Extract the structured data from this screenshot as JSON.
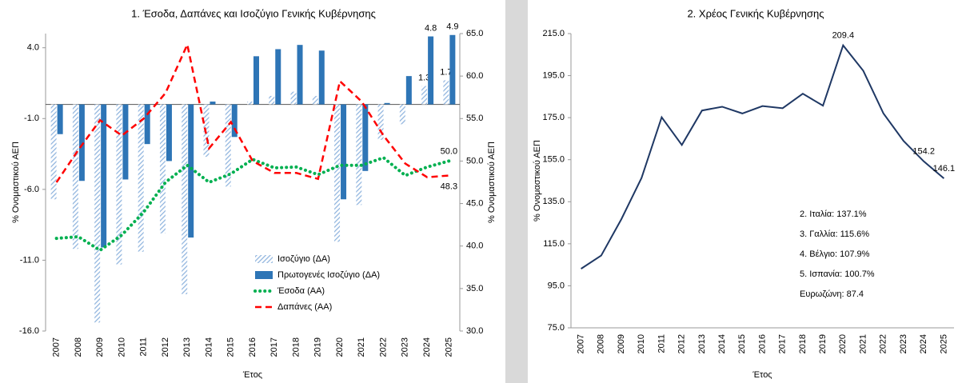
{
  "chart_data": [
    {
      "type": "bar_line",
      "title": "1. Έσοδα, Δαπάνες και Ισοζύγιο Γενικής Κυβέρνησης",
      "xlabel": "Έτος",
      "ylabel": "% Ονομαστικού ΑΕΠ",
      "y2label": "% Ονομαστικού ΑΕΠ",
      "categories": [
        "2007",
        "2008",
        "2009",
        "2010",
        "2011",
        "2012",
        "2013",
        "2014",
        "2015",
        "2016",
        "2017",
        "2018",
        "2019",
        "2020",
        "2021",
        "2022",
        "2023",
        "2024",
        "2025"
      ],
      "ylim": [
        -16,
        5
      ],
      "yticks": [
        {
          "value": 4,
          "label": "4.0"
        },
        {
          "value": -1,
          "label": "-1.0"
        },
        {
          "value": -6,
          "label": "-6.0"
        },
        {
          "value": -11,
          "label": "-11.0"
        },
        {
          "value": -16,
          "label": "-16.0"
        }
      ],
      "y2lim": [
        30,
        65
      ],
      "y2ticks": [
        {
          "value": 30,
          "label": "30.0"
        },
        {
          "value": 35,
          "label": "35.0"
        },
        {
          "value": 40,
          "label": "40.0"
        },
        {
          "value": 45,
          "label": "45.0"
        },
        {
          "value": 50,
          "label": "50.0"
        },
        {
          "value": 55,
          "label": "55.0"
        },
        {
          "value": 60,
          "label": "60.0"
        },
        {
          "value": 65,
          "label": "65.0"
        }
      ],
      "grid": false,
      "legend": "lower center",
      "series": [
        {
          "name": "Ισοζύγιο (ΔΑ)",
          "kind": "bar",
          "hatch": true,
          "color": "#8fb4de",
          "values": [
            -6.7,
            -10.2,
            -15.4,
            -11.3,
            -10.4,
            -9.1,
            -13.4,
            -3.7,
            -5.8,
            0.2,
            0.6,
            0.9,
            0.6,
            -9.7,
            -7.1,
            -2.5,
            -1.4,
            1.3,
            1.7
          ],
          "value_labels": [
            null,
            null,
            null,
            null,
            null,
            null,
            null,
            null,
            null,
            null,
            null,
            null,
            null,
            null,
            null,
            null,
            null,
            "1.3",
            "1.7"
          ]
        },
        {
          "name": "Πρωτογενές Ισοζύγιο (ΔΑ)",
          "kind": "bar",
          "hatch": false,
          "color": "#2e75b6",
          "values": [
            -2.1,
            -5.4,
            -10.1,
            -5.3,
            -2.8,
            -4.0,
            -9.4,
            0.2,
            -2.3,
            3.4,
            3.9,
            4.2,
            3.8,
            -6.7,
            -4.7,
            0.1,
            2.0,
            4.8,
            4.9
          ],
          "value_labels": [
            null,
            null,
            null,
            null,
            null,
            null,
            null,
            null,
            null,
            null,
            null,
            null,
            null,
            null,
            null,
            null,
            null,
            "4.8",
            "4.9"
          ]
        },
        {
          "name": "Έσοδα (ΑΑ)",
          "kind": "line",
          "axis": "y2",
          "style": "dotted",
          "color": "#00b050",
          "values": [
            40.9,
            41.1,
            39.5,
            41.3,
            44.0,
            47.5,
            49.5,
            47.5,
            48.5,
            50.2,
            49.2,
            49.3,
            48.4,
            49.5,
            49.5,
            50.4,
            48.3,
            49.3,
            50.0
          ],
          "value_labels": [
            null,
            null,
            null,
            null,
            null,
            null,
            null,
            null,
            null,
            null,
            null,
            null,
            null,
            null,
            null,
            null,
            null,
            null,
            "50.0"
          ]
        },
        {
          "name": "Δαπάνες (ΑΑ)",
          "kind": "line",
          "axis": "y2",
          "style": "dashed",
          "color": "#ff0000",
          "values": [
            47.5,
            51.3,
            54.8,
            53.0,
            55.0,
            58.0,
            63.7,
            51.5,
            54.6,
            50.0,
            48.6,
            48.6,
            47.9,
            59.4,
            57.0,
            53.0,
            49.7,
            48.1,
            48.3
          ],
          "value_labels": [
            null,
            null,
            null,
            null,
            null,
            null,
            null,
            null,
            null,
            null,
            null,
            null,
            null,
            null,
            null,
            null,
            null,
            null,
            "48.3"
          ]
        }
      ]
    },
    {
      "type": "line",
      "title": "2. Χρέος Γενικής Κυβέρνησης",
      "xlabel": "Έτος",
      "ylabel": "% Ονομαστικού ΑΕΠ",
      "categories": [
        "2007",
        "2008",
        "2009",
        "2010",
        "2011",
        "2012",
        "2013",
        "2014",
        "2015",
        "2016",
        "2017",
        "2018",
        "2019",
        "2020",
        "2021",
        "2022",
        "2023",
        "2024",
        "2025"
      ],
      "ylim": [
        75,
        215
      ],
      "yticks": [
        {
          "value": 75,
          "label": "75.0"
        },
        {
          "value": 95,
          "label": "95.0"
        },
        {
          "value": 115,
          "label": "115.0"
        },
        {
          "value": 135,
          "label": "135.0"
        },
        {
          "value": 155,
          "label": "155.0"
        },
        {
          "value": 175,
          "label": "175.0"
        },
        {
          "value": 195,
          "label": "195.0"
        },
        {
          "value": 215,
          "label": "215.0"
        }
      ],
      "grid": false,
      "series": [
        {
          "name": "Χρέος",
          "color": "#1f3864",
          "values": [
            103.1,
            109.4,
            126.7,
            146.3,
            175.2,
            162.0,
            178.4,
            180.2,
            177.0,
            180.5,
            179.5,
            186.4,
            180.7,
            209.4,
            197.3,
            177.0,
            163.9,
            154.2,
            146.1
          ],
          "value_labels": [
            null,
            null,
            null,
            null,
            null,
            null,
            null,
            null,
            null,
            null,
            null,
            null,
            null,
            "209.4",
            null,
            null,
            null,
            "154.2",
            "146.1"
          ]
        }
      ],
      "annotations": [
        "2. Ιταλία: 137.1%",
        "3. Γαλλία: 115.6%",
        "4. Βέλγιο: 107.9%",
        "5. Ισπανία: 100.7%",
        "Ευρωζώνη: 87.4"
      ]
    }
  ]
}
